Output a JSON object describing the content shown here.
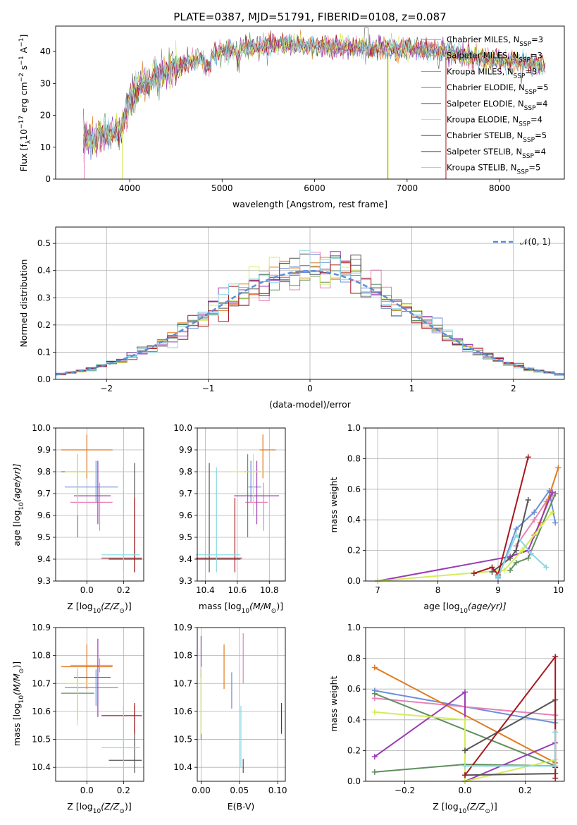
{
  "figure": {
    "title": "PLATE=0387, MJD=51791, FIBERID=0108, z=0.087"
  },
  "colors": {
    "Chabrier MILES": "#6a8fd8",
    "Salpeter MILES": "#e882b8",
    "Kroupa MILES": "#e07b1f",
    "Chabrier ELODIE": "#5f8f5f",
    "Salpeter ELODIE": "#9b3bb5",
    "Kroupa ELODIE": "#d4ec5c",
    "Chabrier STELIB": "#555555",
    "Salpeter STELIB": "#a8171e",
    "Kroupa STELIB": "#86d8e2",
    "normal": "#5b8ed6"
  },
  "chart_data": [
    {
      "id": "spectrum",
      "type": "line",
      "xlabel": "wavelength [Angstrom, rest frame]",
      "ylabel_prefix": "Flux [f",
      "ylabel_mid": "10",
      "ylabel_exp1": "−17",
      "ylabel_rest": " erg cm",
      "ylabel_exp2": "−2",
      "ylabel_s": " s",
      "ylabel_exp3": "−1",
      "ylabel_end": " A",
      "ylabel_exp4": "−1",
      "ylabel_close": "]",
      "xlim": [
        3200,
        8700
      ],
      "ylim": [
        0,
        48
      ],
      "xticks": [
        4000,
        5000,
        6000,
        7000,
        8000
      ],
      "yticks": [
        0,
        10,
        20,
        30,
        40
      ],
      "envelope": [
        [
          3500,
          12
        ],
        [
          3700,
          14
        ],
        [
          3900,
          15
        ],
        [
          4000,
          24
        ],
        [
          4100,
          29
        ],
        [
          4300,
          32
        ],
        [
          4500,
          35
        ],
        [
          4800,
          38
        ],
        [
          5000,
          40
        ],
        [
          5200,
          41
        ],
        [
          5500,
          42
        ],
        [
          6000,
          42
        ],
        [
          6500,
          41
        ],
        [
          7000,
          41
        ],
        [
          7400,
          40
        ],
        [
          7800,
          38
        ],
        [
          8100,
          37
        ],
        [
          8400,
          36
        ],
        [
          8500,
          35
        ]
      ],
      "legend": [
        {
          "name": "Chabrier MILES",
          "sub": "SSP",
          "n": "3"
        },
        {
          "name": "Salpeter MILES",
          "sub": "SSP",
          "n": "3"
        },
        {
          "name": "Kroupa MILES",
          "sub": "SSP",
          "n": "3"
        },
        {
          "name": "Chabrier ELODIE",
          "sub": "SSP",
          "n": "5"
        },
        {
          "name": "Salpeter ELODIE",
          "sub": "SSP",
          "n": "4"
        },
        {
          "name": "Kroupa ELODIE",
          "sub": "SSP",
          "n": "4"
        },
        {
          "name": "Chabrier STELIB",
          "sub": "SSP",
          "n": "5"
        },
        {
          "name": "Salpeter STELIB",
          "sub": "SSP",
          "n": "4"
        },
        {
          "name": "Kroupa STELIB",
          "sub": "SSP",
          "n": "5"
        }
      ]
    },
    {
      "id": "residuals",
      "type": "bar",
      "xlabel": "(data-model)/error",
      "ylabel": "Normed distribution",
      "xlim": [
        -2.5,
        2.5
      ],
      "ylim": [
        0,
        0.56
      ],
      "xticks": [
        -2,
        -1,
        0,
        1,
        2
      ],
      "xticklabels": [
        "−2",
        "−1",
        "0",
        "1",
        "2"
      ],
      "yticks": [
        0,
        0.1,
        0.2,
        0.3,
        0.4,
        0.5
      ],
      "yticklabels": [
        "0.0",
        "0.1",
        "0.2",
        "0.3",
        "0.4",
        "0.5"
      ],
      "legend_label": "𝒩(0, 1)",
      "bin_width": 0.1
    },
    {
      "id": "z_age",
      "type": "scatter",
      "xlabel": "Z [log",
      "xlabel_sub": "10",
      "xlabel_rest": "(Z/Z",
      "xlabel_sun": "⊙",
      "xlabel_close": ")]",
      "ylabel": "age  [log",
      "ylabel_sub": "10",
      "ylabel_rest": "(age/yr)]",
      "xlim": [
        -0.17,
        0.31
      ],
      "ylim": [
        9.3,
        10.0
      ],
      "xticks": [
        0.0,
        0.2
      ],
      "xticklabels": [
        "0.0",
        "0.2"
      ],
      "yticks": [
        9.3,
        9.4,
        9.5,
        9.6,
        9.7,
        9.8,
        9.9,
        10.0
      ],
      "yticklabels": [
        "9.3",
        "9.4",
        "9.5",
        "9.6",
        "9.7",
        "9.8",
        "9.9",
        "10.0"
      ]
    },
    {
      "id": "mass_age",
      "type": "scatter",
      "xlabel": "mass [log",
      "xlabel_sub": "10",
      "xlabel_rest": "(M/M",
      "xlabel_sun": "⊙",
      "xlabel_close": ")]",
      "xlim": [
        10.35,
        10.9
      ],
      "ylim": [
        9.3,
        10.0
      ],
      "xticks": [
        10.4,
        10.6,
        10.8
      ],
      "xticklabels": [
        "10.4",
        "10.6",
        "10.8"
      ],
      "yticks": [
        9.3,
        9.4,
        9.5,
        9.6,
        9.7,
        9.8,
        9.9,
        10.0
      ],
      "yticklabels": [
        "9.3",
        "9.4",
        "9.5",
        "9.6",
        "9.7",
        "9.8",
        "9.9",
        "10.0"
      ]
    },
    {
      "id": "age_weight",
      "type": "line",
      "xlabel": "age  [log",
      "xlabel_sub": "10",
      "xlabel_rest": "(age/yr)]",
      "ylabel": "mass weight",
      "xlim": [
        6.8,
        10.1
      ],
      "ylim": [
        0,
        1.0
      ],
      "xticks": [
        7,
        8,
        9,
        10
      ],
      "xticklabels": [
        "7",
        "8",
        "9",
        "10"
      ],
      "yticks": [
        0,
        0.2,
        0.4,
        0.6,
        0.8,
        1.0
      ],
      "yticklabels": [
        "0.0",
        "0.2",
        "0.4",
        "0.6",
        "0.8",
        "1.0"
      ]
    },
    {
      "id": "z_mass",
      "type": "scatter",
      "xlabel": "Z [log",
      "xlabel_sub": "10",
      "xlabel_rest": "(Z/Z",
      "xlabel_sun": "⊙",
      "xlabel_close": ")]",
      "ylabel": "mass [log",
      "ylabel_sub": "10",
      "ylabel_rest": "(M/M",
      "ylabel_sun": "⊙",
      "ylabel_close": ")]",
      "xlim": [
        -0.17,
        0.31
      ],
      "ylim": [
        10.35,
        10.9
      ],
      "xticks": [
        0.0,
        0.2
      ],
      "xticklabels": [
        "0.0",
        "0.2"
      ],
      "yticks": [
        10.4,
        10.5,
        10.6,
        10.7,
        10.8,
        10.9
      ],
      "yticklabels": [
        "10.4",
        "10.5",
        "10.6",
        "10.7",
        "10.8",
        "10.9"
      ]
    },
    {
      "id": "ebv_mass",
      "type": "scatter",
      "xlabel": "E(B-V)",
      "xlim": [
        -0.005,
        0.11
      ],
      "ylim": [
        10.35,
        10.9
      ],
      "xticks": [
        0.0,
        0.05,
        0.1
      ],
      "xticklabels": [
        "0.00",
        "0.05",
        "0.10"
      ],
      "yticks": [
        10.4,
        10.5,
        10.6,
        10.7,
        10.8,
        10.9
      ],
      "yticklabels": [
        "10.4",
        "10.5",
        "10.6",
        "10.7",
        "10.8",
        "10.9"
      ]
    },
    {
      "id": "z_weight",
      "type": "line",
      "xlabel": "Z [log",
      "xlabel_sub": "10",
      "xlabel_rest": "(Z/Z",
      "xlabel_sun": "⊙",
      "xlabel_close": ")]",
      "ylabel": "mass weight",
      "xlim": [
        -0.33,
        0.33
      ],
      "ylim": [
        0,
        1.0
      ],
      "xticks": [
        -0.2,
        0.0,
        0.2
      ],
      "xticklabels": [
        "−0.2",
        "0.0",
        "0.2"
      ],
      "yticks": [
        0,
        0.2,
        0.4,
        0.6,
        0.8,
        1.0
      ],
      "yticklabels": [
        "0.0",
        "0.2",
        "0.4",
        "0.6",
        "0.8",
        "1.0"
      ]
    }
  ],
  "models": [
    {
      "name": "Chabrier MILES",
      "Z": [
        0.05,
        -0.12,
        0.17
      ],
      "age": [
        9.73,
        9.66,
        9.85
      ],
      "mass": [
        10.685,
        10.62,
        10.75
      ],
      "mass_err": [
        10.7,
        10.67,
        10.73
      ],
      "ebv": [
        0.04,
        10.61,
        10.74
      ],
      "wa": [
        [
          9.0,
          0.02
        ],
        [
          9.3,
          0.34
        ],
        [
          9.85,
          0.59
        ],
        [
          9.95,
          0.38
        ],
        [
          9.6,
          0.45
        ]
      ],
      "wz": [
        [
          -0.3,
          0.59
        ],
        [
          0.3,
          0.38
        ]
      ]
    },
    {
      "name": "Salpeter MILES",
      "Z": [
        0.07,
        -0.09,
        0.14
      ],
      "age": [
        9.66,
        9.53,
        9.75
      ],
      "mass": [
        10.765,
        10.74,
        10.79
      ],
      "mass_err": [
        10.74,
        10.65,
        10.79
      ],
      "ebv": [
        0.055,
        10.7,
        10.88
      ],
      "wa": [
        [
          9.3,
          0.23
        ],
        [
          9.6,
          0.4
        ],
        [
          9.9,
          0.56
        ],
        [
          9.8,
          0.52
        ]
      ],
      "wz": [
        [
          -0.3,
          0.54
        ],
        [
          0.3,
          0.43
        ]
      ]
    },
    {
      "name": "Kroupa MILES",
      "Z": [
        0.0,
        -0.14,
        0.14
      ],
      "age": [
        9.9,
        9.77,
        9.97
      ],
      "mass": [
        10.76,
        10.68,
        10.84
      ],
      "mass_err": [
        10.82,
        10.74,
        10.9
      ],
      "ebv": [
        0.03,
        10.68,
        10.84
      ],
      "wa": [
        [
          9.4,
          0.2
        ],
        [
          9.6,
          0.3
        ],
        [
          10.0,
          0.74
        ],
        [
          9.7,
          0.38
        ]
      ],
      "wz": [
        [
          -0.3,
          0.74
        ],
        [
          0.3,
          0.12
        ]
      ]
    },
    {
      "name": "Chabrier ELODIE",
      "Z": [
        -0.05,
        -0.14,
        0.04
      ],
      "age": [
        9.8,
        9.5,
        9.88
      ],
      "mass": [
        10.665,
        10.57,
        10.75
      ],
      "mass_err": [
        10.68,
        10.64,
        10.78
      ],
      "ebv": [
        0.0,
        10.5,
        10.75
      ],
      "wa": [
        [
          9.2,
          0.07
        ],
        [
          9.3,
          0.12
        ],
        [
          9.95,
          0.57
        ],
        [
          9.5,
          0.15
        ]
      ],
      "wz": [
        [
          -0.3,
          0.06
        ],
        [
          0.0,
          0.11
        ],
        [
          0.3,
          0.1
        ],
        [
          -0.3,
          0.57
        ]
      ]
    },
    {
      "name": "Salpeter ELODIE",
      "Z": [
        0.06,
        -0.07,
        0.13
      ],
      "age": [
        9.69,
        9.56,
        9.85
      ],
      "mass": [
        10.722,
        10.58,
        10.86
      ],
      "mass_err": [
        10.79,
        10.74,
        10.84
      ],
      "ebv": [
        0.0,
        10.72,
        10.87
      ],
      "wa": [
        [
          7.0,
          0.0
        ],
        [
          9.2,
          0.16
        ],
        [
          9.9,
          0.58
        ],
        [
          9.5,
          0.2
        ]
      ],
      "wz": [
        [
          -0.3,
          0.16
        ],
        [
          0.0,
          0.58
        ],
        [
          0.0,
          0.0
        ],
        [
          0.3,
          0.25
        ]
      ]
    },
    {
      "name": "Kroupa ELODIE",
      "Z": [
        -0.05,
        -0.12,
        0.04
      ],
      "age": [
        9.8,
        9.6,
        9.88
      ],
      "mass": [
        10.7,
        10.55,
        10.76
      ],
      "mass_err": [
        10.76,
        10.71,
        10.8
      ],
      "ebv": [
        0.0,
        10.52,
        10.76
      ],
      "wa": [
        [
          7.0,
          0.0
        ],
        [
          9.1,
          0.07
        ],
        [
          9.9,
          0.45
        ],
        [
          9.4,
          0.2
        ]
      ],
      "wz": [
        [
          -0.3,
          0.45
        ],
        [
          0.0,
          0.4
        ],
        [
          0.0,
          0.0
        ],
        [
          0.3,
          0.14
        ]
      ]
    },
    {
      "name": "Chabrier STELIB",
      "Z": [
        0.26,
        0.12,
        0.3
      ],
      "age": [
        9.4,
        9.34,
        9.84
      ],
      "mass": [
        10.425,
        10.38,
        10.62
      ],
      "mass_err": [
        10.4,
        10.35,
        10.58
      ],
      "ebv": [
        0.055,
        10.38,
        10.43
      ],
      "wa": [
        [
          8.9,
          0.06
        ],
        [
          9.2,
          0.15
        ],
        [
          9.5,
          0.53
        ],
        [
          9.3,
          0.2
        ]
      ],
      "wz": [
        [
          0.0,
          0.2
        ],
        [
          0.3,
          0.53
        ],
        [
          0.3,
          0.05
        ],
        [
          0.0,
          0.04
        ]
      ]
    },
    {
      "name": "Salpeter STELIB",
      "Z": [
        0.26,
        0.08,
        0.3
      ],
      "age": [
        9.405,
        9.34,
        9.68
      ],
      "mass": [
        10.585,
        10.52,
        10.63
      ],
      "mass_err": [
        10.405,
        10.34,
        10.58
      ],
      "ebv": [
        0.105,
        10.52,
        10.63
      ],
      "wa": [
        [
          8.6,
          0.05
        ],
        [
          8.9,
          0.09
        ],
        [
          9.5,
          0.81
        ],
        [
          9.0,
          0.04
        ]
      ],
      "wz": [
        [
          0.0,
          0.04
        ],
        [
          0.3,
          0.81
        ],
        [
          0.3,
          0.02
        ],
        [
          0.3,
          0.09
        ]
      ]
    },
    {
      "name": "Kroupa STELIB",
      "Z": [
        0.2,
        0.08,
        0.29
      ],
      "age": [
        9.42,
        9.34,
        9.82
      ],
      "mass": [
        10.47,
        10.35,
        10.62
      ],
      "mass_err": [
        10.42,
        10.34,
        10.82
      ],
      "ebv": [
        0.052,
        10.4,
        10.62
      ],
      "wa": [
        [
          9.0,
          0.03
        ],
        [
          9.3,
          0.3
        ],
        [
          9.55,
          0.18
        ],
        [
          9.8,
          0.09
        ]
      ],
      "wz": [
        [
          0.0,
          0.1
        ],
        [
          0.3,
          0.1
        ],
        [
          0.3,
          0.32
        ]
      ]
    }
  ]
}
